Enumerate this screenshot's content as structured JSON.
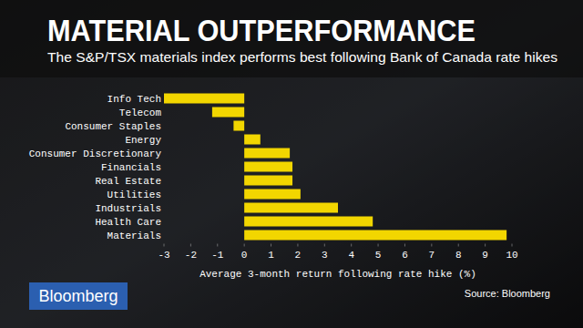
{
  "chart_data": {
    "type": "bar",
    "orientation": "horizontal",
    "title": "MATERIAL OUTPERFORMANCE",
    "subtitle": "The S&P/TSX materials index performs best following Bank of Canada rate hikes",
    "x_label": "Average 3-month return following rate hike (%)",
    "source": "Source: Bloomberg",
    "logo": "Bloomberg",
    "categories": [
      "Info Tech",
      "Telecom",
      "Consumer Staples",
      "Energy",
      "Consumer Discretionary",
      "Financials",
      "Real Estate",
      "Utilities",
      "Industrials",
      "Health Care",
      "Materials"
    ],
    "values": [
      -3.0,
      -1.2,
      -0.4,
      0.6,
      1.7,
      1.8,
      1.8,
      2.1,
      3.5,
      4.8,
      9.8
    ],
    "color": "#f2d600",
    "xlim": [
      -3,
      10
    ],
    "xticks": [
      -3,
      -2,
      -1,
      0,
      1,
      2,
      3,
      4,
      5,
      6,
      7,
      8,
      9,
      10
    ],
    "grid": false
  }
}
